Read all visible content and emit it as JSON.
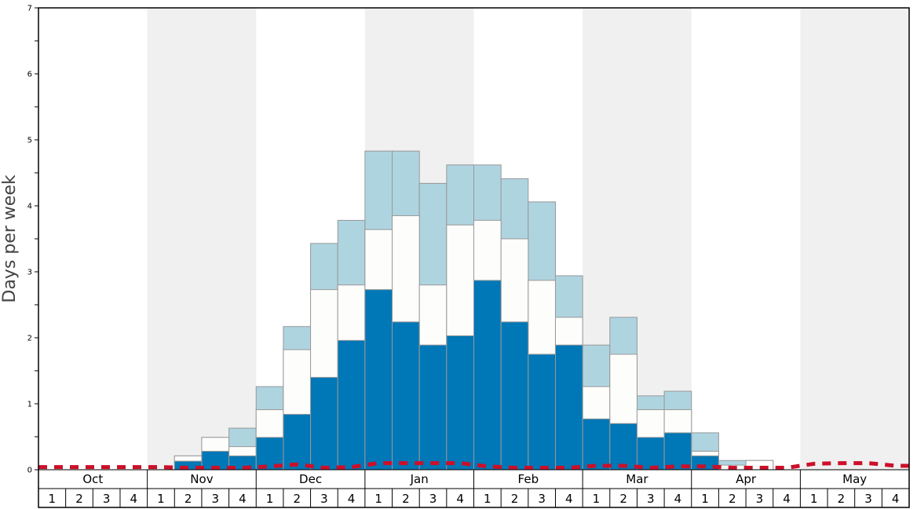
{
  "chart_data": {
    "type": "bar",
    "ylabel": "Days per week",
    "ylim": [
      0,
      7
    ],
    "yticks": [
      0,
      1,
      2,
      3,
      4,
      5,
      6,
      7
    ],
    "months": [
      "Oct",
      "Nov",
      "Dec",
      "Jan",
      "Feb",
      "Mar",
      "Apr",
      "May"
    ],
    "weeks": [
      "1",
      "2",
      "3",
      "4"
    ],
    "shaded_months": [
      "Nov",
      "Jan",
      "Mar",
      "May"
    ],
    "colors": {
      "bottom": "#0077b6",
      "middle": "#fdfdfb",
      "top": "#aed4e0",
      "line": "#cc0f2a",
      "shade": "#f0f0f0",
      "bar_border": "#999999"
    },
    "series": [
      {
        "values": [
          0,
          0,
          0,
          0,
          0,
          0.13,
          0.28,
          0.21,
          0.49,
          0.84,
          1.4,
          1.96,
          2.73,
          2.24,
          1.89,
          2.03,
          2.87,
          2.24,
          1.75,
          1.89,
          0.77,
          0.7,
          0.49,
          0.56,
          0.21,
          0,
          0,
          0,
          0,
          0,
          0,
          0
        ]
      },
      {
        "values": [
          0,
          0,
          0,
          0,
          0,
          0.21,
          0.49,
          0.35,
          0.91,
          1.82,
          2.73,
          2.8,
          3.64,
          3.85,
          2.8,
          3.71,
          3.78,
          3.5,
          2.87,
          2.31,
          1.26,
          1.75,
          0.91,
          0.91,
          0.28,
          0.07,
          0.14,
          0,
          0,
          0,
          0,
          0
        ]
      },
      {
        "values": [
          0,
          0,
          0,
          0,
          0,
          0.21,
          0.49,
          0.63,
          1.26,
          2.17,
          3.43,
          3.78,
          4.83,
          4.83,
          4.34,
          4.62,
          4.62,
          4.41,
          4.06,
          2.94,
          1.89,
          2.31,
          1.12,
          1.19,
          0.56,
          0.14,
          0.14,
          0,
          0,
          0,
          0,
          0
        ]
      },
      {
        "type": "line",
        "values": [
          0.04,
          0.04,
          0.04,
          0.04,
          0.04,
          0.03,
          0.03,
          0.03,
          0.05,
          0.08,
          0.03,
          0.04,
          0.1,
          0.1,
          0.1,
          0.1,
          0.05,
          0.03,
          0.03,
          0.03,
          0.06,
          0.06,
          0.03,
          0.05,
          0.05,
          0.03,
          0.03,
          0.03,
          0.09,
          0.1,
          0.1,
          0.06
        ]
      }
    ]
  }
}
